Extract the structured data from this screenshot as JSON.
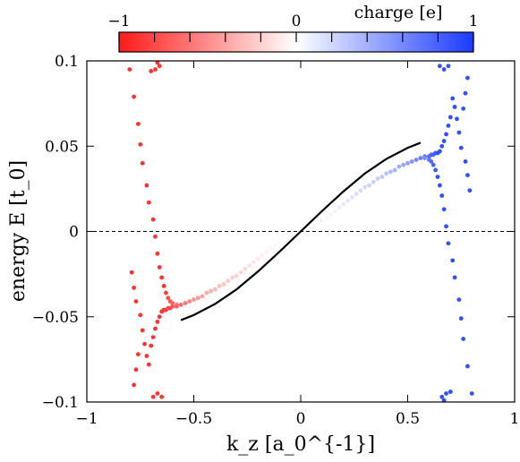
{
  "chart_data": {
    "type": "scatter",
    "title": "",
    "xlabel": "k_z [a_0^{-1}]",
    "ylabel": "energy E [t_0]",
    "xlim": [
      -1,
      1
    ],
    "ylim": [
      -0.1,
      0.1
    ],
    "xticks": [
      -1,
      -0.5,
      0,
      0.5,
      1
    ],
    "xtick_labels": [
      "−1",
      "−0.5",
      "0",
      "0.5",
      "1"
    ],
    "yticks": [
      -0.1,
      -0.05,
      0,
      0.05,
      0.1
    ],
    "ytick_labels": [
      "−0.1",
      "−0.05",
      "0",
      "0.05",
      "0.1"
    ],
    "grid": false,
    "reference_line": {
      "y": 0,
      "style": "dashed"
    },
    "colorbar": {
      "label": "charge [e]",
      "range": [
        -1,
        1
      ],
      "tick_labels": [
        {
          "value": -1,
          "label": "−1"
        },
        {
          "value": 0,
          "label": "0"
        },
        {
          "value": 1,
          "label": "1"
        }
      ],
      "tick_marks": [
        -1,
        -0.8,
        -0.6,
        -0.4,
        -0.2,
        0,
        0.2,
        0.4,
        0.6,
        0.8,
        1
      ],
      "colors": {
        "negative": "#ff1a1a",
        "zero": "#ffffff",
        "positive": "#1a3aff"
      },
      "placement": "top"
    },
    "series": [
      {
        "kind": "line",
        "color": "#000000",
        "x": [
          -0.56,
          -0.5,
          -0.4,
          -0.3,
          -0.2,
          -0.1,
          0,
          0.1,
          0.2,
          0.3,
          0.4,
          0.5,
          0.56
        ],
        "y": [
          -0.052,
          -0.049,
          -0.0425,
          -0.034,
          -0.0235,
          -0.012,
          0,
          0.012,
          0.0235,
          0.034,
          0.0425,
          0.049,
          0.052
        ]
      },
      {
        "kind": "scatter",
        "description_points": "band states colored by charge",
        "points": [
          [
            -0.8,
            0.095,
            -0.9
          ],
          [
            -0.78,
            0.079,
            -0.9
          ],
          [
            -0.76,
            0.063,
            -0.9
          ],
          [
            -0.75,
            0.051,
            -0.9
          ],
          [
            -0.74,
            0.04,
            -0.9
          ],
          [
            -0.72,
            0.027,
            -0.9
          ],
          [
            -0.71,
            0.017,
            -0.9
          ],
          [
            -0.69,
            0.007,
            -0.9
          ],
          [
            -0.68,
            -0.003,
            -0.9
          ],
          [
            -0.67,
            -0.013,
            -0.9
          ],
          [
            -0.66,
            -0.021,
            -0.9
          ],
          [
            -0.65,
            -0.027,
            -0.9
          ],
          [
            -0.64,
            -0.032,
            -0.9
          ],
          [
            -0.63,
            -0.036,
            -0.85
          ],
          [
            -0.62,
            -0.039,
            -0.8
          ],
          [
            -0.61,
            -0.041,
            -0.75
          ],
          [
            -0.6,
            -0.042,
            -0.7
          ],
          [
            -0.58,
            -0.043,
            -0.6
          ],
          [
            -0.66,
            0.097,
            -0.9
          ],
          [
            -0.68,
            0.095,
            -0.9
          ],
          [
            -0.7,
            0.094,
            -0.9
          ],
          [
            -0.67,
            0.099,
            -0.9
          ],
          [
            -0.71,
            -0.078,
            -0.9
          ],
          [
            -0.72,
            -0.073,
            -0.9
          ],
          [
            -0.73,
            -0.066,
            -0.9
          ],
          [
            -0.74,
            -0.058,
            -0.9
          ],
          [
            -0.75,
            -0.049,
            -0.9
          ],
          [
            -0.77,
            -0.041,
            -0.9
          ],
          [
            -0.78,
            -0.033,
            -0.9
          ],
          [
            -0.79,
            -0.024,
            -0.9
          ],
          [
            -0.78,
            -0.09,
            -0.9
          ],
          [
            -0.77,
            -0.081,
            -0.9
          ],
          [
            -0.76,
            -0.072,
            -0.9
          ],
          [
            -0.7,
            -0.067,
            -0.9
          ],
          [
            -0.69,
            -0.062,
            -0.9
          ],
          [
            -0.68,
            -0.057,
            -0.9
          ],
          [
            -0.67,
            -0.053,
            -0.9
          ],
          [
            -0.66,
            -0.05,
            -0.9
          ],
          [
            -0.65,
            -0.047,
            -0.9
          ],
          [
            -0.64,
            -0.046,
            -0.9
          ],
          [
            -0.63,
            -0.046,
            -0.85
          ],
          [
            -0.62,
            -0.045,
            -0.8
          ],
          [
            -0.61,
            -0.045,
            -0.8
          ],
          [
            -0.69,
            -0.097,
            -0.9
          ],
          [
            -0.67,
            -0.095,
            -0.9
          ],
          [
            -0.65,
            -0.097,
            -0.9
          ],
          [
            -0.6,
            -0.044,
            -0.75
          ],
          [
            -0.58,
            -0.044,
            -0.7
          ],
          [
            -0.56,
            -0.043,
            -0.65
          ],
          [
            -0.54,
            -0.042,
            -0.6
          ],
          [
            -0.52,
            -0.041,
            -0.55
          ],
          [
            -0.5,
            -0.04,
            -0.5
          ],
          [
            -0.48,
            -0.039,
            -0.46
          ],
          [
            -0.46,
            -0.038,
            -0.42
          ],
          [
            -0.44,
            -0.036,
            -0.38
          ],
          [
            -0.42,
            -0.035,
            -0.35
          ],
          [
            -0.4,
            -0.034,
            -0.32
          ],
          [
            -0.38,
            -0.032,
            -0.29
          ],
          [
            -0.36,
            -0.031,
            -0.26
          ],
          [
            -0.34,
            -0.029,
            -0.24
          ],
          [
            -0.32,
            -0.027,
            -0.22
          ],
          [
            -0.3,
            -0.026,
            -0.2
          ],
          [
            -0.28,
            -0.024,
            -0.18
          ],
          [
            -0.26,
            -0.022,
            -0.16
          ],
          [
            -0.24,
            -0.02,
            -0.14
          ],
          [
            -0.22,
            -0.018,
            -0.12
          ],
          [
            -0.2,
            -0.016,
            -0.1
          ],
          [
            -0.18,
            -0.014,
            -0.08
          ],
          [
            -0.16,
            -0.012,
            -0.06
          ],
          [
            -0.14,
            -0.01,
            -0.05
          ],
          [
            -0.12,
            -0.008,
            -0.04
          ],
          [
            -0.1,
            -0.006,
            -0.03
          ],
          [
            0.1,
            0.006,
            0.03
          ],
          [
            0.12,
            0.008,
            0.04
          ],
          [
            0.14,
            0.01,
            0.05
          ],
          [
            0.16,
            0.012,
            0.06
          ],
          [
            0.18,
            0.014,
            0.08
          ],
          [
            0.2,
            0.016,
            0.1
          ],
          [
            0.22,
            0.018,
            0.12
          ],
          [
            0.24,
            0.02,
            0.14
          ],
          [
            0.26,
            0.022,
            0.16
          ],
          [
            0.28,
            0.024,
            0.18
          ],
          [
            0.3,
            0.026,
            0.2
          ],
          [
            0.32,
            0.027,
            0.22
          ],
          [
            0.34,
            0.029,
            0.24
          ],
          [
            0.36,
            0.031,
            0.26
          ],
          [
            0.38,
            0.032,
            0.29
          ],
          [
            0.4,
            0.034,
            0.32
          ],
          [
            0.42,
            0.035,
            0.35
          ],
          [
            0.44,
            0.036,
            0.38
          ],
          [
            0.46,
            0.038,
            0.42
          ],
          [
            0.48,
            0.039,
            0.46
          ],
          [
            0.5,
            0.04,
            0.5
          ],
          [
            0.52,
            0.041,
            0.55
          ],
          [
            0.54,
            0.042,
            0.6
          ],
          [
            0.56,
            0.043,
            0.65
          ],
          [
            0.58,
            0.044,
            0.7
          ],
          [
            0.6,
            0.044,
            0.75
          ],
          [
            0.61,
            0.045,
            0.8
          ],
          [
            0.62,
            0.045,
            0.8
          ],
          [
            0.63,
            0.046,
            0.85
          ],
          [
            0.64,
            0.046,
            0.9
          ],
          [
            0.65,
            0.047,
            0.9
          ],
          [
            0.66,
            0.05,
            0.9
          ],
          [
            0.67,
            0.053,
            0.9
          ],
          [
            0.68,
            0.057,
            0.9
          ],
          [
            0.69,
            0.062,
            0.9
          ],
          [
            0.7,
            0.067,
            0.9
          ],
          [
            0.65,
            0.097,
            0.9
          ],
          [
            0.67,
            0.095,
            0.9
          ],
          [
            0.69,
            0.097,
            0.9
          ],
          [
            0.58,
            0.043,
            0.6
          ],
          [
            0.6,
            0.042,
            0.7
          ],
          [
            0.61,
            0.041,
            0.75
          ],
          [
            0.62,
            0.039,
            0.8
          ],
          [
            0.63,
            0.036,
            0.85
          ],
          [
            0.64,
            0.032,
            0.9
          ],
          [
            0.65,
            0.027,
            0.9
          ],
          [
            0.66,
            0.021,
            0.9
          ],
          [
            0.67,
            0.013,
            0.9
          ],
          [
            0.68,
            0.003,
            0.9
          ],
          [
            0.69,
            -0.007,
            0.9
          ],
          [
            0.71,
            -0.017,
            0.9
          ],
          [
            0.72,
            -0.027,
            0.9
          ],
          [
            0.74,
            -0.04,
            0.9
          ],
          [
            0.75,
            -0.051,
            0.9
          ],
          [
            0.76,
            -0.063,
            0.9
          ],
          [
            0.78,
            -0.079,
            0.9
          ],
          [
            0.8,
            -0.095,
            0.9
          ],
          [
            0.66,
            -0.097,
            0.9
          ],
          [
            0.68,
            -0.095,
            0.9
          ],
          [
            0.7,
            -0.094,
            0.9
          ],
          [
            0.67,
            -0.099,
            0.9
          ],
          [
            0.71,
            0.078,
            0.9
          ],
          [
            0.72,
            0.073,
            0.9
          ],
          [
            0.73,
            0.066,
            0.9
          ],
          [
            0.74,
            0.058,
            0.9
          ],
          [
            0.75,
            0.049,
            0.9
          ],
          [
            0.77,
            0.041,
            0.9
          ],
          [
            0.78,
            0.033,
            0.9
          ],
          [
            0.79,
            0.024,
            0.9
          ],
          [
            0.78,
            0.09,
            0.9
          ],
          [
            0.77,
            0.081,
            0.9
          ],
          [
            0.76,
            0.072,
            0.9
          ]
        ]
      }
    ]
  }
}
